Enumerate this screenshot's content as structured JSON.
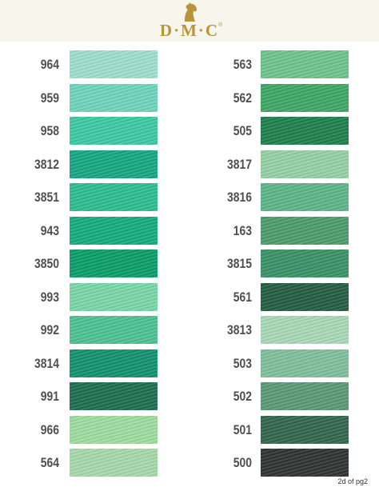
{
  "header": {
    "brand": "D·M·C",
    "registered": "®",
    "logo_icon": "horse-head-icon"
  },
  "left_column": [
    {
      "code": "964",
      "color": "#9ee0cc"
    },
    {
      "code": "959",
      "color": "#6fd4bd"
    },
    {
      "code": "958",
      "color": "#3dc9a3"
    },
    {
      "code": "3812",
      "color": "#17a784"
    },
    {
      "code": "3851",
      "color": "#2ebe90"
    },
    {
      "code": "943",
      "color": "#13ad7b"
    },
    {
      "code": "3850",
      "color": "#0c9e68"
    },
    {
      "code": "993",
      "color": "#7ad6a8"
    },
    {
      "code": "992",
      "color": "#4cc193"
    },
    {
      "code": "3814",
      "color": "#12936f"
    },
    {
      "code": "991",
      "color": "#1e6e52"
    },
    {
      "code": "966",
      "color": "#9edca0"
    },
    {
      "code": "564",
      "color": "#a6d9aa"
    }
  ],
  "right_column": [
    {
      "code": "563",
      "color": "#6ec38b"
    },
    {
      "code": "562",
      "color": "#3fa765"
    },
    {
      "code": "505",
      "color": "#1f7f4d"
    },
    {
      "code": "3817",
      "color": "#95d0a5"
    },
    {
      "code": "3816",
      "color": "#5db589"
    },
    {
      "code": "163",
      "color": "#4d9c6c"
    },
    {
      "code": "3815",
      "color": "#3b9267"
    },
    {
      "code": "561",
      "color": "#245e42"
    },
    {
      "code": "3813",
      "color": "#a8d8b6"
    },
    {
      "code": "503",
      "color": "#80c09c"
    },
    {
      "code": "502",
      "color": "#5a9a74"
    },
    {
      "code": "501",
      "color": "#33664c"
    },
    {
      "code": "500",
      "color": "#2f3432"
    }
  ],
  "footer": {
    "page_note": "2d of pg2"
  }
}
